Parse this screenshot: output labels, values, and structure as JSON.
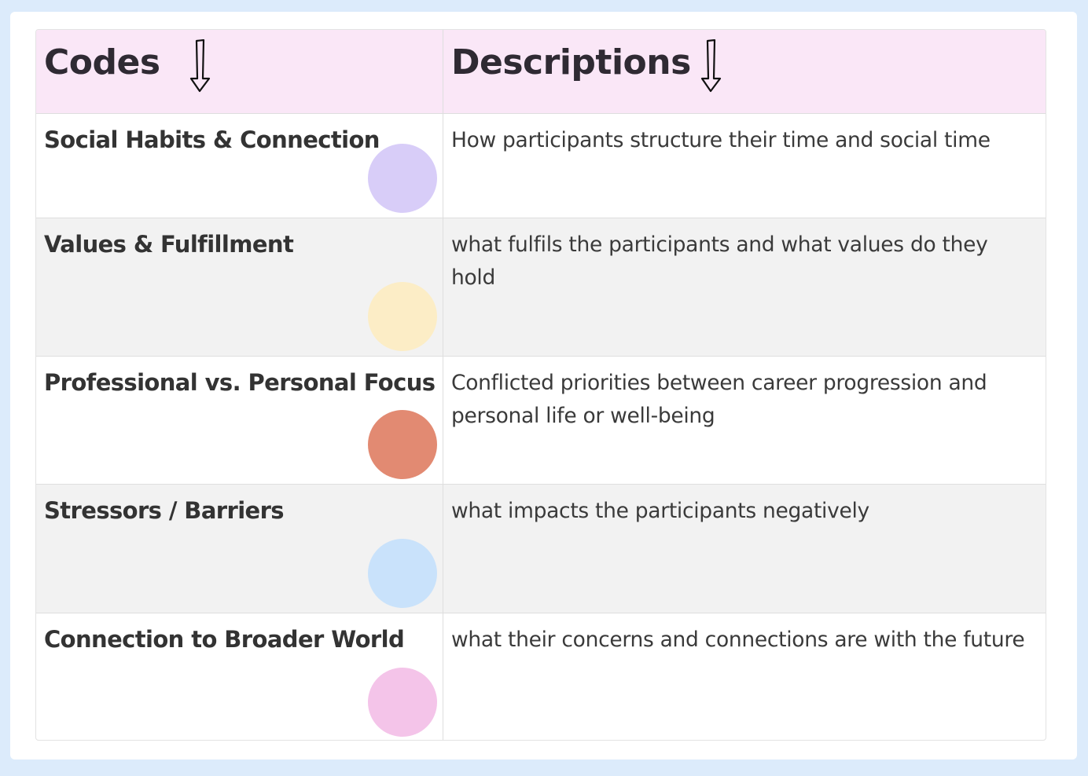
{
  "header": {
    "codes_label": "Codes",
    "descriptions_label": "Descriptions"
  },
  "rows": [
    {
      "code": "Social Habits & Connection",
      "description": "How participants structure their time and social time",
      "color": "#d8cdf8"
    },
    {
      "code": "Values & Fulfillment",
      "description": "what fulfils the participants and what values do they hold",
      "color": "#fcedc6"
    },
    {
      "code": "Professional vs. Personal Focus",
      "description": "Conflicted priorities between career progression and personal life or well-being",
      "color": "#e28a72"
    },
    {
      "code": "Stressors / Barriers",
      "description": "what impacts the participants negatively",
      "color": "#c9e2fb"
    },
    {
      "code": "Connection to Broader World",
      "description": "what their concerns and connections are with the future",
      "color": "#f4c4e9"
    }
  ],
  "theme": {
    "header_bg": "#fae7f7",
    "alt_row_bg": "#f2f2f2",
    "page_bg": "#dcebfb"
  }
}
